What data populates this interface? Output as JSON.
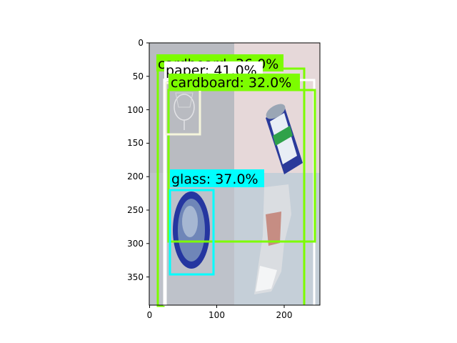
{
  "figure": {
    "xticks": [
      "0",
      "100",
      "200"
    ],
    "yticks": [
      "0",
      "50",
      "100",
      "150",
      "200",
      "250",
      "300",
      "350"
    ]
  },
  "image": {
    "quadrants": [
      {
        "name": "top-left",
        "color": "#b7b9bf"
      },
      {
        "name": "top-right",
        "color": "#e5d7d7"
      },
      {
        "name": "bottom-left",
        "color": "#bcc0c8"
      },
      {
        "name": "bottom-right",
        "color": "#c3cdd6"
      }
    ]
  },
  "detections": [
    {
      "label": "cardboard: 36.0%",
      "partially_hidden": true,
      "color": "#7cfc00"
    },
    {
      "label": "paper: 41.0%",
      "color": "#ffffff"
    },
    {
      "label": "cardboard: 32.0%",
      "color": "#7cfc00"
    },
    {
      "label": "glass: 37.0%",
      "color": "#00ffff"
    }
  ],
  "objects": [
    {
      "name": "wine-glass",
      "box_color": "#f5f5dc"
    },
    {
      "name": "soda-can",
      "color": "#2a3a9a"
    },
    {
      "name": "jar-lid",
      "color": "#2536a0"
    },
    {
      "name": "crumpled-foil",
      "color": "#d9d9d9"
    }
  ]
}
